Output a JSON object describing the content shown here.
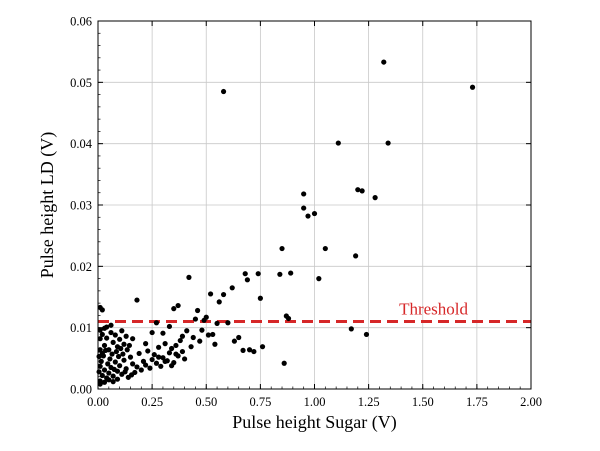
{
  "chart_data": {
    "type": "scatter",
    "title": "",
    "xlabel": "Pulse height Sugar (V)",
    "ylabel": "Pulse height LD (V)",
    "xlim": [
      0,
      2.0
    ],
    "ylim": [
      0,
      0.06
    ],
    "grid": true,
    "x_ticks": [
      0,
      0.25,
      0.5,
      0.75,
      1.0,
      1.25,
      1.5,
      1.75,
      2.0
    ],
    "x_tick_labels": [
      "0.00",
      "0.25",
      "0.50",
      "0.75",
      "1.00",
      "1.25",
      "1.50",
      "1.75",
      "2.00"
    ],
    "y_ticks": [
      0,
      0.01,
      0.02,
      0.03,
      0.04,
      0.05,
      0.06
    ],
    "y_tick_labels": [
      "0.00",
      "0.01",
      "0.02",
      "0.03",
      "0.04",
      "0.05",
      "0.06"
    ],
    "threshold": {
      "label": "Threshold",
      "y": 0.011,
      "color": "#d62728",
      "style": "dashed"
    },
    "marker_color": "#000000",
    "points": [
      [
        0.01,
        0.0013
      ],
      [
        0.02,
        0.0022
      ],
      [
        0.03,
        0.0031
      ],
      [
        0.04,
        0.0018
      ],
      [
        0.05,
        0.0026
      ],
      [
        0.06,
        0.0035
      ],
      [
        0.07,
        0.0021
      ],
      [
        0.08,
        0.0044
      ],
      [
        0.09,
        0.0029
      ],
      [
        0.1,
        0.0038
      ],
      [
        0.11,
        0.0024
      ],
      [
        0.12,
        0.0047
      ],
      [
        0.13,
        0.0033
      ],
      [
        0.14,
        0.0019
      ],
      [
        0.15,
        0.0052
      ],
      [
        0.16,
        0.0041
      ],
      [
        0.17,
        0.0027
      ],
      [
        0.18,
        0.0036
      ],
      [
        0.19,
        0.0058
      ],
      [
        0.2,
        0.0031
      ],
      [
        0.21,
        0.0045
      ],
      [
        0.22,
        0.0039
      ],
      [
        0.23,
        0.0062
      ],
      [
        0.24,
        0.0034
      ],
      [
        0.25,
        0.0048
      ],
      [
        0.26,
        0.0056
      ],
      [
        0.27,
        0.0042
      ],
      [
        0.28,
        0.0068
      ],
      [
        0.29,
        0.0037
      ],
      [
        0.3,
        0.0051
      ],
      [
        0.31,
        0.0074
      ],
      [
        0.32,
        0.0046
      ],
      [
        0.33,
        0.0059
      ],
      [
        0.34,
        0.0066
      ],
      [
        0.35,
        0.0043
      ],
      [
        0.36,
        0.0071
      ],
      [
        0.37,
        0.0054
      ],
      [
        0.38,
        0.0079
      ],
      [
        0.39,
        0.0061
      ],
      [
        0.4,
        0.0049
      ],
      [
        0.02,
        0.0058
      ],
      [
        0.03,
        0.0071
      ],
      [
        0.04,
        0.0083
      ],
      [
        0.05,
        0.0064
      ],
      [
        0.06,
        0.0092
      ],
      [
        0.07,
        0.0076
      ],
      [
        0.08,
        0.0088
      ],
      [
        0.09,
        0.0069
      ],
      [
        0.1,
        0.0081
      ],
      [
        0.11,
        0.0095
      ],
      [
        0.12,
        0.0073
      ],
      [
        0.13,
        0.0086
      ],
      [
        0.01,
        0.0096
      ],
      [
        0.02,
        0.0089
      ],
      [
        0.03,
        0.0099
      ],
      [
        0.015,
        0.0045
      ],
      [
        0.025,
        0.0054
      ],
      [
        0.035,
        0.0063
      ],
      [
        0.045,
        0.0041
      ],
      [
        0.055,
        0.0049
      ],
      [
        0.065,
        0.0057
      ],
      [
        0.075,
        0.0032
      ],
      [
        0.085,
        0.0061
      ],
      [
        0.095,
        0.0053
      ],
      [
        0.105,
        0.0066
      ],
      [
        0.115,
        0.0057
      ],
      [
        0.125,
        0.0028
      ],
      [
        0.135,
        0.0064
      ],
      [
        0.145,
        0.0071
      ],
      [
        0.155,
        0.0023
      ],
      [
        0.01,
        0.0082
      ],
      [
        0.01,
        0.0064
      ],
      [
        0.01,
        0.0037
      ],
      [
        0.005,
        0.0053
      ],
      [
        0.005,
        0.0028
      ],
      [
        0.01,
        0.0008
      ],
      [
        0.03,
        0.0011
      ],
      [
        0.05,
        0.0015
      ],
      [
        0.07,
        0.0012
      ],
      [
        0.09,
        0.0016
      ],
      [
        0.02,
        0.0129
      ],
      [
        0.01,
        0.0133
      ],
      [
        0.04,
        0.0101
      ],
      [
        0.06,
        0.0104
      ],
      [
        0.16,
        0.0082
      ],
      [
        0.18,
        0.0145
      ],
      [
        0.22,
        0.0074
      ],
      [
        0.25,
        0.0092
      ],
      [
        0.27,
        0.0108
      ],
      [
        0.3,
        0.0091
      ],
      [
        0.33,
        0.0102
      ],
      [
        0.35,
        0.0131
      ],
      [
        0.37,
        0.0136
      ],
      [
        0.42,
        0.0182
      ],
      [
        0.44,
        0.0084
      ],
      [
        0.45,
        0.0114
      ],
      [
        0.46,
        0.0128
      ],
      [
        0.48,
        0.0096
      ],
      [
        0.5,
        0.0117
      ],
      [
        0.52,
        0.0155
      ],
      [
        0.53,
        0.0089
      ],
      [
        0.54,
        0.0073
      ],
      [
        0.55,
        0.0107
      ],
      [
        0.56,
        0.0142
      ],
      [
        0.58,
        0.0154
      ],
      [
        0.6,
        0.0108
      ],
      [
        0.62,
        0.0165
      ],
      [
        0.63,
        0.0078
      ],
      [
        0.65,
        0.0084
      ],
      [
        0.67,
        0.0063
      ],
      [
        0.68,
        0.0188
      ],
      [
        0.69,
        0.0178
      ],
      [
        0.7,
        0.0064
      ],
      [
        0.72,
        0.0061
      ],
      [
        0.74,
        0.0188
      ],
      [
        0.75,
        0.0148
      ],
      [
        0.76,
        0.0069
      ],
      [
        0.85,
        0.0229
      ],
      [
        0.84,
        0.0187
      ],
      [
        0.86,
        0.0042
      ],
      [
        0.87,
        0.0119
      ],
      [
        0.88,
        0.0115
      ],
      [
        0.89,
        0.0189
      ],
      [
        0.95,
        0.0318
      ],
      [
        0.95,
        0.0295
      ],
      [
        0.97,
        0.0282
      ],
      [
        1.0,
        0.0286
      ],
      [
        1.02,
        0.018
      ],
      [
        1.05,
        0.0229
      ],
      [
        1.11,
        0.0401
      ],
      [
        1.17,
        0.0098
      ],
      [
        1.19,
        0.0217
      ],
      [
        1.2,
        0.0325
      ],
      [
        1.22,
        0.0323
      ],
      [
        1.24,
        0.0089
      ],
      [
        1.28,
        0.0312
      ],
      [
        1.32,
        0.0533
      ],
      [
        1.34,
        0.0401
      ],
      [
        1.73,
        0.0492
      ],
      [
        0.58,
        0.0485
      ],
      [
        0.28,
        0.0052
      ],
      [
        0.31,
        0.0045
      ],
      [
        0.34,
        0.0038
      ],
      [
        0.36,
        0.0057
      ],
      [
        0.39,
        0.0086
      ],
      [
        0.41,
        0.0095
      ],
      [
        0.43,
        0.0069
      ],
      [
        0.47,
        0.0078
      ],
      [
        0.49,
        0.0112
      ],
      [
        0.51,
        0.0088
      ]
    ]
  }
}
